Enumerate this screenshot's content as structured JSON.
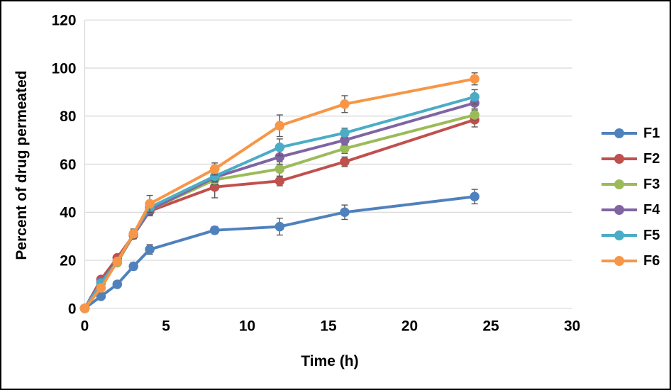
{
  "chart_data": {
    "type": "line",
    "title": "",
    "xlabel": "Time (h)",
    "ylabel": "Percent of drug permeated",
    "x": [
      0,
      1,
      2,
      3,
      4,
      8,
      12,
      16,
      24
    ],
    "xlim": [
      0,
      30
    ],
    "ylim": [
      0,
      120
    ],
    "x_ticks": [
      0,
      5,
      10,
      15,
      20,
      25,
      30
    ],
    "y_ticks": [
      0,
      20,
      40,
      60,
      80,
      100,
      120
    ],
    "grid": "horizontal-only",
    "legend_position": "right-middle",
    "has_error_bars": true,
    "series": [
      {
        "name": "F1",
        "color": "#4F81BD",
        "values": [
          0,
          5,
          10,
          17.5,
          24.5,
          32.5,
          34,
          40,
          46.5
        ],
        "errors": [
          0,
          0.5,
          1,
          1.5,
          2,
          1.5,
          3.5,
          3,
          3
        ]
      },
      {
        "name": "F2",
        "color": "#C0504D",
        "values": [
          0,
          12,
          21,
          30.5,
          40.5,
          50.5,
          53,
          61,
          78.5
        ],
        "errors": [
          0,
          1,
          1,
          1.5,
          2,
          4.5,
          2,
          2,
          3
        ]
      },
      {
        "name": "F3",
        "color": "#9BBB59",
        "values": [
          0,
          10.5,
          19,
          30.5,
          41,
          53.5,
          58,
          66.5,
          80.5
        ],
        "errors": [
          0,
          1,
          1,
          1.5,
          2,
          2,
          3,
          2,
          2
        ]
      },
      {
        "name": "F4",
        "color": "#8064A2",
        "values": [
          0,
          11,
          19.5,
          30.5,
          41,
          54.5,
          63,
          70,
          85.5
        ],
        "errors": [
          0,
          1,
          1,
          1.5,
          2,
          2,
          3,
          2,
          2.5
        ]
      },
      {
        "name": "F5",
        "color": "#4BACC6",
        "values": [
          0,
          10.5,
          19.5,
          31,
          42,
          55,
          67,
          73,
          88
        ],
        "errors": [
          0,
          1,
          1,
          1.5,
          2,
          2,
          3.5,
          2,
          3
        ]
      },
      {
        "name": "F6",
        "color": "#F79646",
        "values": [
          0,
          8.5,
          19.5,
          31,
          43.5,
          58,
          76,
          85,
          95.5
        ],
        "errors": [
          0,
          1,
          1,
          2,
          3.5,
          2.5,
          4.5,
          3.5,
          2.5
        ]
      }
    ]
  },
  "styles": {
    "background": "#FFFFFF",
    "border_color": "#000000",
    "gridline_color": "#D6D6D6",
    "error_bar_color": "#595959",
    "text_color": "#000000"
  }
}
